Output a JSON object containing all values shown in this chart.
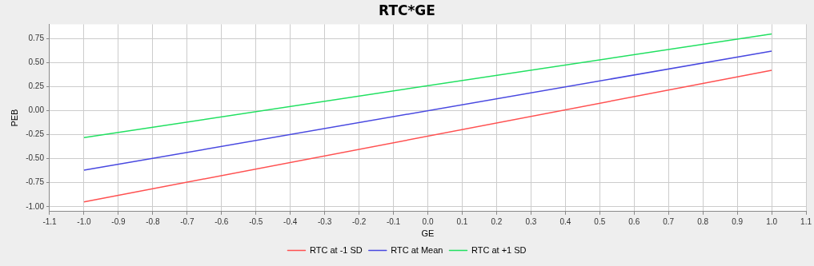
{
  "chart_data": {
    "type": "line",
    "title": "RTC*GE",
    "xlabel": "GE",
    "ylabel": "PEB",
    "x": [
      -1.0,
      1.0
    ],
    "series": [
      {
        "name": "RTC at -1 SD",
        "color": "#ff5050",
        "values": [
          -0.95,
          0.42
        ]
      },
      {
        "name": "RTC at Mean",
        "color": "#4848e0",
        "values": [
          -0.62,
          0.62
        ]
      },
      {
        "name": "RTC at +1 SD",
        "color": "#20e060",
        "values": [
          -0.28,
          0.8
        ]
      }
    ],
    "xlim": [
      -1.1,
      1.1
    ],
    "xticks": [
      -1.1,
      {
        "value": -1,
        "label": "-1.0"
      },
      -0.9,
      -0.8,
      -0.7,
      -0.6,
      -0.5,
      -0.4,
      -0.3,
      -0.2,
      -0.1,
      {
        "value": 0,
        "label": "0.0"
      },
      0.1,
      0.2,
      0.3,
      0.4,
      0.5,
      0.6,
      0.7,
      0.8,
      0.9,
      {
        "value": 1,
        "label": "1.0"
      },
      1.1
    ],
    "ylim": [
      -1.05,
      0.9
    ],
    "yticks": [
      {
        "value": -1,
        "label": "-1.00"
      },
      -0.75,
      {
        "value": -0.5,
        "label": "-0.50"
      },
      -0.25,
      {
        "value": 0,
        "label": "0.00"
      },
      0.25,
      {
        "value": 0.5,
        "label": "0.50"
      },
      0.75
    ],
    "grid": true,
    "legend": "bottom",
    "marker": "none",
    "line_style": "solid"
  }
}
